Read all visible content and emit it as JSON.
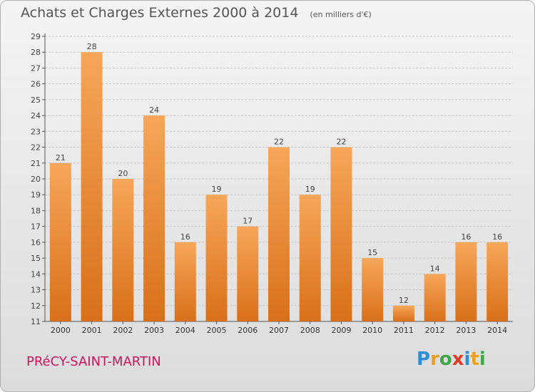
{
  "header": {
    "title": "Achats et Charges Externes 2000 à 2014",
    "unit": "(en milliers d'€)"
  },
  "footer": {
    "place": "PRéCY-SAINT-MARTIN",
    "logo_letters": [
      "P",
      "r",
      "o",
      "x",
      "i",
      "t",
      "i"
    ],
    "logo_colors": [
      "#2a8fd6",
      "#e9a020",
      "#3fa84a",
      "#e03a2a",
      "#2a8fd6",
      "#e9a020",
      "#3fa84a"
    ]
  },
  "chart_data": {
    "type": "bar",
    "categories": [
      "2000",
      "2001",
      "2002",
      "2003",
      "2004",
      "2005",
      "2006",
      "2007",
      "2008",
      "2009",
      "2010",
      "2011",
      "2012",
      "2013",
      "2014"
    ],
    "values": [
      21,
      28,
      20,
      24,
      16,
      19,
      17,
      22,
      19,
      22,
      15,
      12,
      14,
      16,
      16
    ],
    "ylim": [
      11,
      29
    ],
    "yticks": [
      "11",
      "12",
      "13",
      "14",
      "15",
      "16",
      "17",
      "18",
      "19",
      "20",
      "21",
      "22",
      "23",
      "24",
      "25",
      "26",
      "27",
      "28",
      "29"
    ],
    "grid": true,
    "bar_color": "#f0922e"
  }
}
